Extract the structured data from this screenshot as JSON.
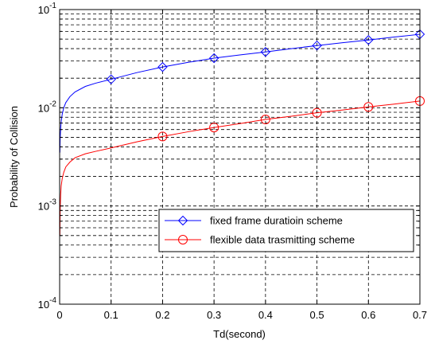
{
  "chart_data": {
    "type": "line",
    "xlabel": "Td(second)",
    "ylabel": "Probability of Collision",
    "xlim": [
      0,
      0.7
    ],
    "ylim": [
      0.0001,
      0.1
    ],
    "yscale": "log",
    "grid": true,
    "grid_style": "dashed",
    "legend_placement": "lower-right",
    "x_ticks": [
      0,
      0.1,
      0.2,
      0.3,
      0.4,
      0.5,
      0.6,
      0.7
    ],
    "x_tick_labels": [
      "0",
      "0.1",
      "0.2",
      "0.3",
      "0.4",
      "0.5",
      "0.6",
      "0.7"
    ],
    "y_ticks": [
      {
        "value": 0.0001,
        "base": "10",
        "exp": "-4"
      },
      {
        "value": 0.001,
        "base": "10",
        "exp": "-3"
      },
      {
        "value": 0.01,
        "base": "10",
        "exp": "-2"
      },
      {
        "value": 0.1,
        "base": "10",
        "exp": "-1"
      }
    ],
    "series": [
      {
        "name": "fixed frame duratioin scheme",
        "color": "#0000ff",
        "marker": "diamond",
        "marker_x": [
          0.1,
          0.2,
          0.3,
          0.4,
          0.5,
          0.6,
          0.7
        ],
        "marker_y": [
          0.0195,
          0.026,
          0.032,
          0.037,
          0.043,
          0.049,
          0.056
        ],
        "curve_x": [
          0.0005,
          0.001,
          0.002,
          0.003,
          0.005,
          0.008,
          0.012,
          0.02,
          0.03,
          0.05,
          0.07,
          0.1,
          0.15,
          0.2,
          0.25,
          0.3,
          0.35,
          0.4,
          0.45,
          0.5,
          0.55,
          0.6,
          0.65,
          0.7
        ],
        "curve_y": [
          0.0035,
          0.0048,
          0.0062,
          0.0072,
          0.0086,
          0.01,
          0.0113,
          0.013,
          0.0145,
          0.0165,
          0.0178,
          0.0195,
          0.0228,
          0.026,
          0.029,
          0.032,
          0.0345,
          0.037,
          0.04,
          0.043,
          0.046,
          0.049,
          0.0525,
          0.056
        ]
      },
      {
        "name": "flexible data trasmitting scheme",
        "color": "#ff0000",
        "marker": "circle",
        "marker_x": [
          0.2,
          0.3,
          0.4,
          0.5,
          0.6,
          0.7
        ],
        "marker_y": [
          0.0051,
          0.0063,
          0.0076,
          0.0089,
          0.0102,
          0.0117
        ],
        "curve_x": [
          0.0005,
          0.001,
          0.002,
          0.003,
          0.005,
          0.008,
          0.012,
          0.02,
          0.03,
          0.05,
          0.07,
          0.1,
          0.15,
          0.2,
          0.25,
          0.3,
          0.35,
          0.4,
          0.45,
          0.5,
          0.55,
          0.6,
          0.65,
          0.7
        ],
        "curve_y": [
          0.0005,
          0.0009,
          0.0013,
          0.0016,
          0.0019,
          0.0022,
          0.0025,
          0.0028,
          0.0031,
          0.0034,
          0.0036,
          0.0039,
          0.0045,
          0.0051,
          0.0057,
          0.0063,
          0.0069,
          0.0076,
          0.0082,
          0.0089,
          0.0095,
          0.0102,
          0.0109,
          0.0117
        ]
      }
    ]
  }
}
